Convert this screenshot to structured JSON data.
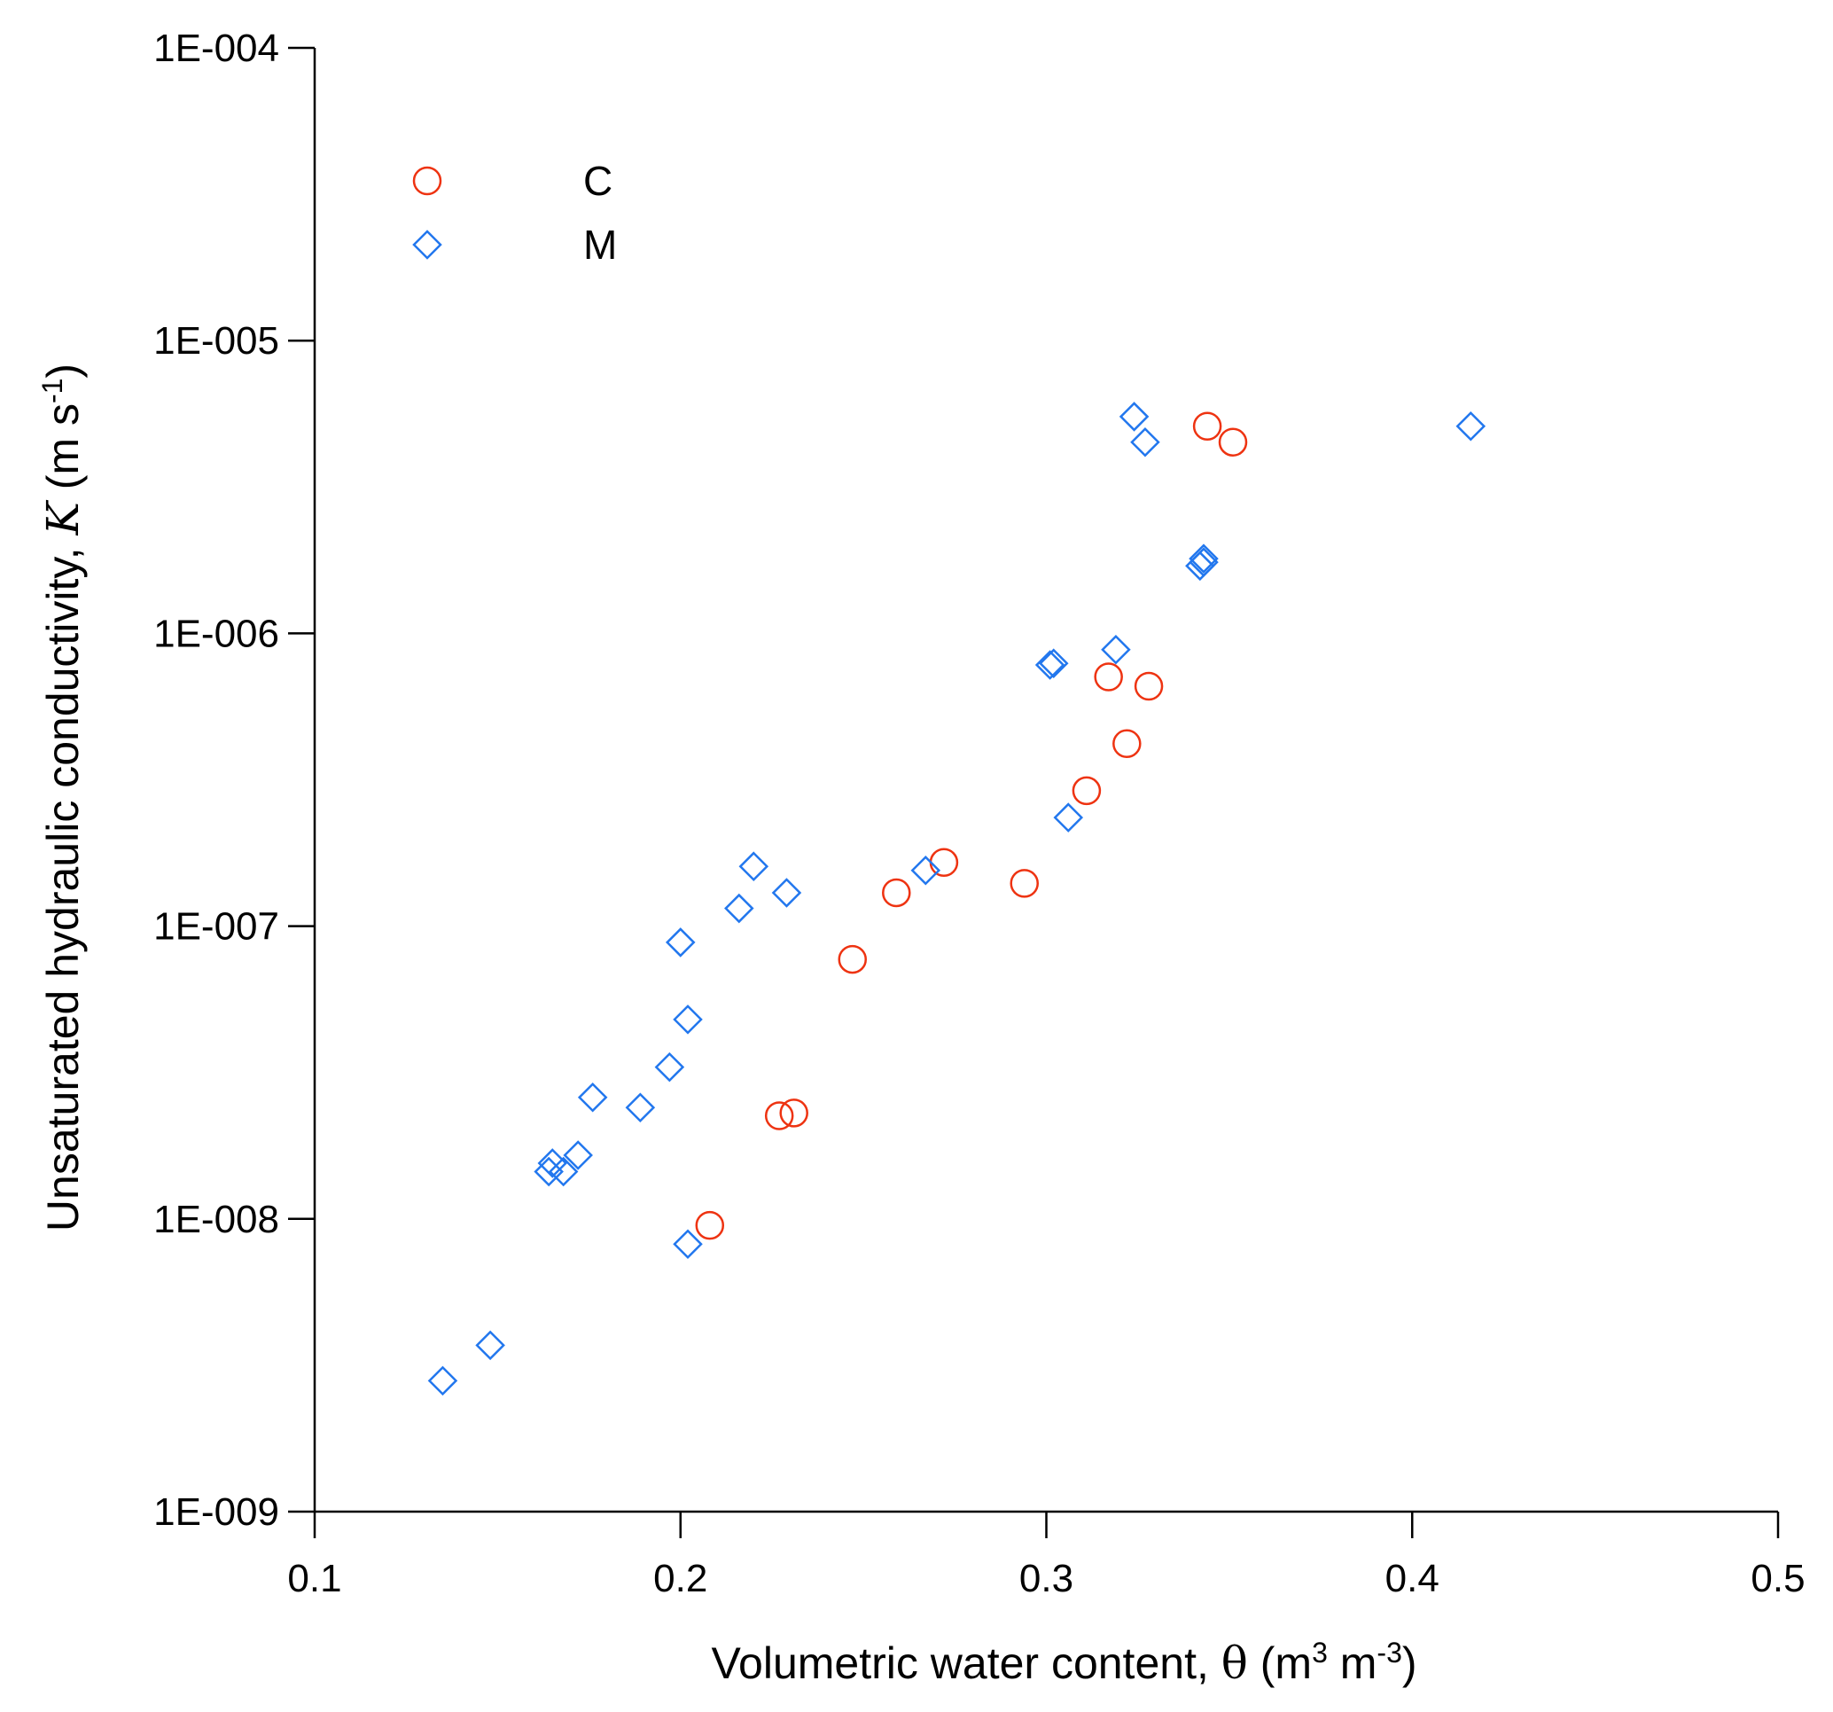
{
  "chart_data": {
    "type": "scatter",
    "title": "",
    "xlabel_main": "Volumetric water content, ",
    "xlabel_symbol": "θ",
    "xlabel_unit_open": " (m",
    "xlabel_sup1": "3",
    "xlabel_unit_mid": " m",
    "xlabel_sup2": "-3",
    "xlabel_unit_close": ")",
    "ylabel_main": "Unsaturated hydraulic conductivity, ",
    "ylabel_symbol": "K",
    "ylabel_unit_open": " (m s",
    "ylabel_sup": "-1",
    "ylabel_unit_close": ")",
    "xlim": [
      0.1,
      0.5
    ],
    "ylim": [
      1e-09,
      0.0001
    ],
    "yscale": "log",
    "x_ticks": [
      {
        "value": 0.1,
        "label": "0.1"
      },
      {
        "value": 0.2,
        "label": "0.2"
      },
      {
        "value": 0.3,
        "label": "0.3"
      },
      {
        "value": 0.4,
        "label": "0.4"
      },
      {
        "value": 0.5,
        "label": "0.5"
      }
    ],
    "y_ticks": [
      {
        "value": 1e-09,
        "label": "1E-009"
      },
      {
        "value": 1e-08,
        "label": "1E-008"
      },
      {
        "value": 1e-07,
        "label": "1E-007"
      },
      {
        "value": 1e-06,
        "label": "1E-006"
      },
      {
        "value": 1e-05,
        "label": "1E-005"
      },
      {
        "value": 0.0001,
        "label": "1E-004"
      }
    ],
    "grid": false,
    "legend_position": "top-left",
    "series": [
      {
        "name": "C",
        "marker": "circle",
        "color": "#ee3311",
        "points": [
          {
            "x": 0.208,
            "y": 9.5e-09
          },
          {
            "x": 0.227,
            "y": 2.25e-08
          },
          {
            "x": 0.231,
            "y": 2.3e-08
          },
          {
            "x": 0.247,
            "y": 7.7e-08
          },
          {
            "x": 0.259,
            "y": 1.3e-07
          },
          {
            "x": 0.272,
            "y": 1.65e-07
          },
          {
            "x": 0.294,
            "y": 1.4e-07
          },
          {
            "x": 0.311,
            "y": 2.9e-07
          },
          {
            "x": 0.317,
            "y": 7.1e-07
          },
          {
            "x": 0.322,
            "y": 4.2e-07
          },
          {
            "x": 0.328,
            "y": 6.6e-07
          },
          {
            "x": 0.344,
            "y": 5.1e-06
          },
          {
            "x": 0.351,
            "y": 4.5e-06
          }
        ]
      },
      {
        "name": "M",
        "marker": "diamond",
        "color": "#2277ee",
        "points": [
          {
            "x": 0.135,
            "y": 2.8e-09
          },
          {
            "x": 0.148,
            "y": 3.7e-09
          },
          {
            "x": 0.164,
            "y": 1.45e-08
          },
          {
            "x": 0.165,
            "y": 1.55e-08
          },
          {
            "x": 0.168,
            "y": 1.45e-08
          },
          {
            "x": 0.172,
            "y": 1.65e-08
          },
          {
            "x": 0.176,
            "y": 2.6e-08
          },
          {
            "x": 0.189,
            "y": 2.4e-08
          },
          {
            "x": 0.197,
            "y": 3.3e-08
          },
          {
            "x": 0.2,
            "y": 8.8e-08
          },
          {
            "x": 0.202,
            "y": 4.8e-08
          },
          {
            "x": 0.202,
            "y": 8.2e-09
          },
          {
            "x": 0.216,
            "y": 1.15e-07
          },
          {
            "x": 0.22,
            "y": 1.6e-07
          },
          {
            "x": 0.229,
            "y": 1.3e-07
          },
          {
            "x": 0.267,
            "y": 1.55e-07
          },
          {
            "x": 0.301,
            "y": 7.8e-07
          },
          {
            "x": 0.302,
            "y": 7.9e-07
          },
          {
            "x": 0.306,
            "y": 2.35e-07
          },
          {
            "x": 0.319,
            "y": 8.8e-07
          },
          {
            "x": 0.324,
            "y": 5.5e-06
          },
          {
            "x": 0.327,
            "y": 4.5e-06
          },
          {
            "x": 0.342,
            "y": 1.7e-06
          },
          {
            "x": 0.343,
            "y": 1.8e-06
          },
          {
            "x": 0.343,
            "y": 1.75e-06
          },
          {
            "x": 0.416,
            "y": 5.1e-06
          }
        ]
      }
    ]
  }
}
